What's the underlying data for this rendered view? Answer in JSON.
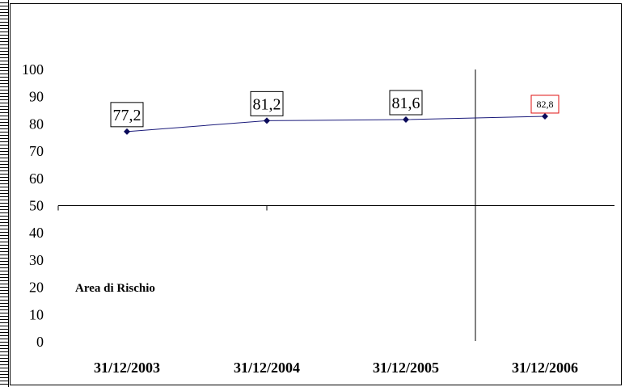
{
  "chart_data": {
    "type": "line",
    "categories": [
      "31/12/2003",
      "31/12/2004",
      "31/12/2005",
      "31/12/2006"
    ],
    "series": [
      {
        "values": [
          77.2,
          81.2,
          81.6,
          82.8
        ],
        "data_labels": [
          "77,2",
          "81,2",
          "81,6",
          "82,8"
        ]
      }
    ],
    "yticks": [
      "0",
      "10",
      "20",
      "30",
      "40",
      "50",
      "60",
      "70",
      "80",
      "90",
      "100"
    ],
    "ylim": [
      0,
      100
    ],
    "threshold_value": 50,
    "annotation": "Area di Rischio",
    "title": "",
    "xlabel": "",
    "ylabel": "",
    "grid": false,
    "colors": {
      "line": "#1a1a7a",
      "marker": "#0a0a5a",
      "label_border": "#000000",
      "highlight_border": "#e01010"
    }
  }
}
